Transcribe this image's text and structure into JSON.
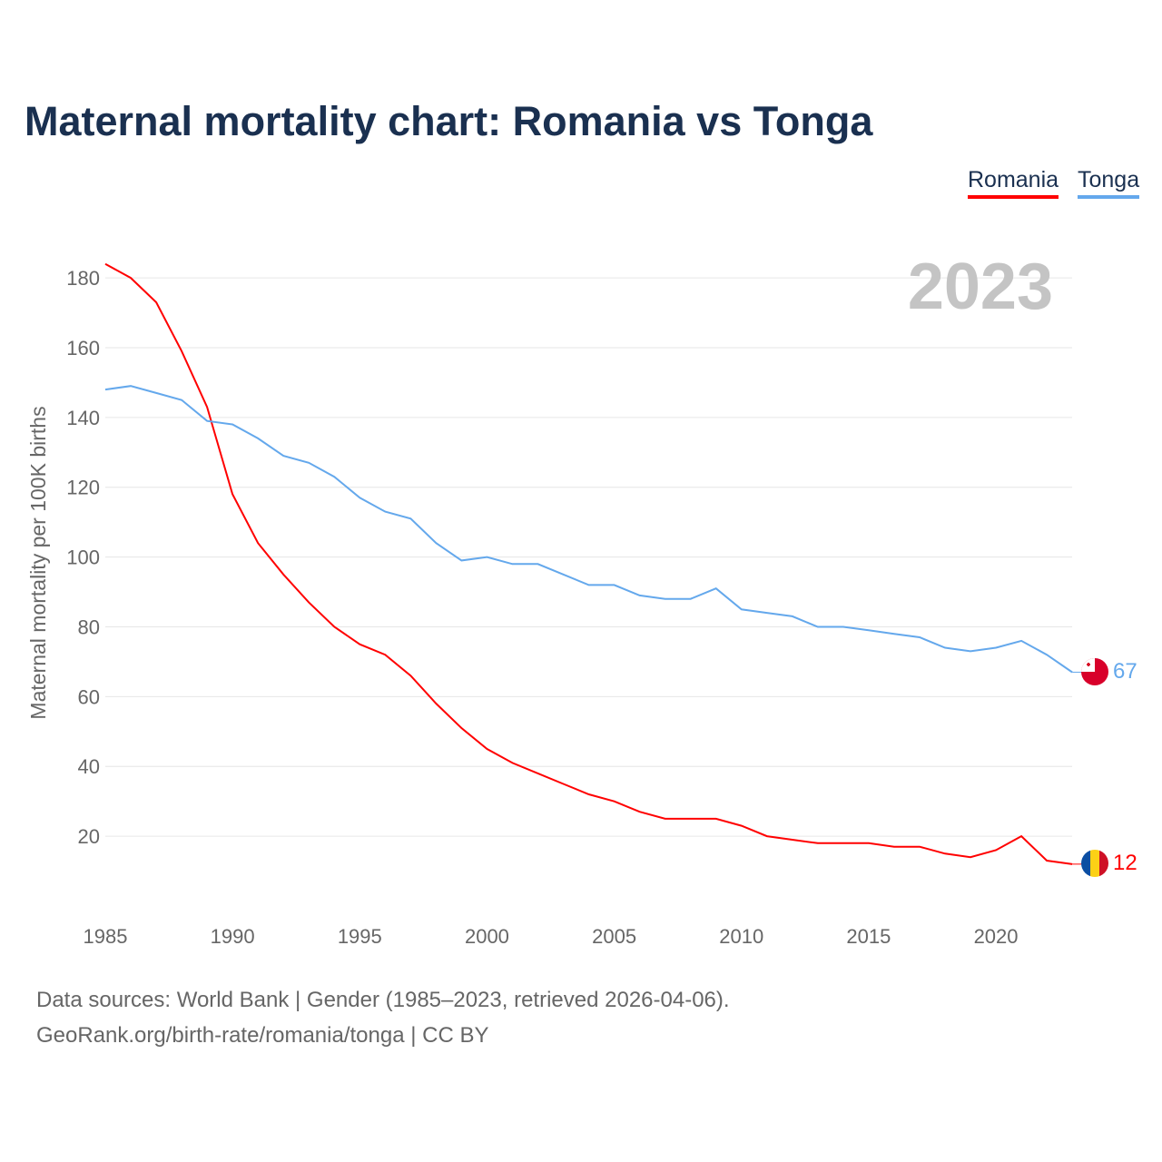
{
  "title": "Maternal mortality chart: Romania vs Tonga",
  "legend": [
    {
      "name": "Romania",
      "color": "#ff0000"
    },
    {
      "name": "Tonga",
      "color": "#64a8ec"
    }
  ],
  "footer": {
    "line1": "Data sources: World Bank | Gender (1985–2023, retrieved 2026-04-06).",
    "line2": "GeoRank.org/birth-rate/romania/tonga | CC BY"
  },
  "chart_data": {
    "type": "line",
    "title": "Maternal mortality chart: Romania vs Tonga",
    "ylabel": "Maternal mortality per 100K births",
    "xlabel": "",
    "year_label": "2023",
    "xlim": [
      1985,
      2023
    ],
    "ylim": [
      0,
      190
    ],
    "xticks": [
      1985,
      1990,
      1995,
      2000,
      2005,
      2010,
      2015,
      2020
    ],
    "yticks": [
      20,
      40,
      60,
      80,
      100,
      120,
      140,
      160,
      180
    ],
    "grid": true,
    "legend_position": "top-right",
    "x": [
      1985,
      1986,
      1987,
      1988,
      1989,
      1990,
      1991,
      1992,
      1993,
      1994,
      1995,
      1996,
      1997,
      1998,
      1999,
      2000,
      2001,
      2002,
      2003,
      2004,
      2005,
      2006,
      2007,
      2008,
      2009,
      2010,
      2011,
      2012,
      2013,
      2014,
      2015,
      2016,
      2017,
      2018,
      2019,
      2020,
      2021,
      2022,
      2023
    ],
    "series": [
      {
        "name": "Romania",
        "color": "#ff0000",
        "end_label": "12",
        "values": [
          184,
          180,
          173,
          159,
          143,
          118,
          104,
          95,
          87,
          80,
          75,
          72,
          66,
          58,
          51,
          45,
          41,
          38,
          35,
          32,
          30,
          27,
          25,
          25,
          25,
          23,
          20,
          19,
          18,
          18,
          18,
          17,
          17,
          15,
          14,
          16,
          20,
          13,
          12
        ]
      },
      {
        "name": "Tonga",
        "color": "#64a8ec",
        "end_label": "67",
        "values": [
          148,
          149,
          147,
          145,
          139,
          138,
          134,
          129,
          127,
          123,
          117,
          113,
          111,
          104,
          99,
          100,
          98,
          98,
          95,
          92,
          92,
          89,
          88,
          88,
          91,
          85,
          84,
          83,
          80,
          80,
          79,
          78,
          77,
          74,
          73,
          74,
          76,
          72,
          67
        ]
      }
    ]
  }
}
